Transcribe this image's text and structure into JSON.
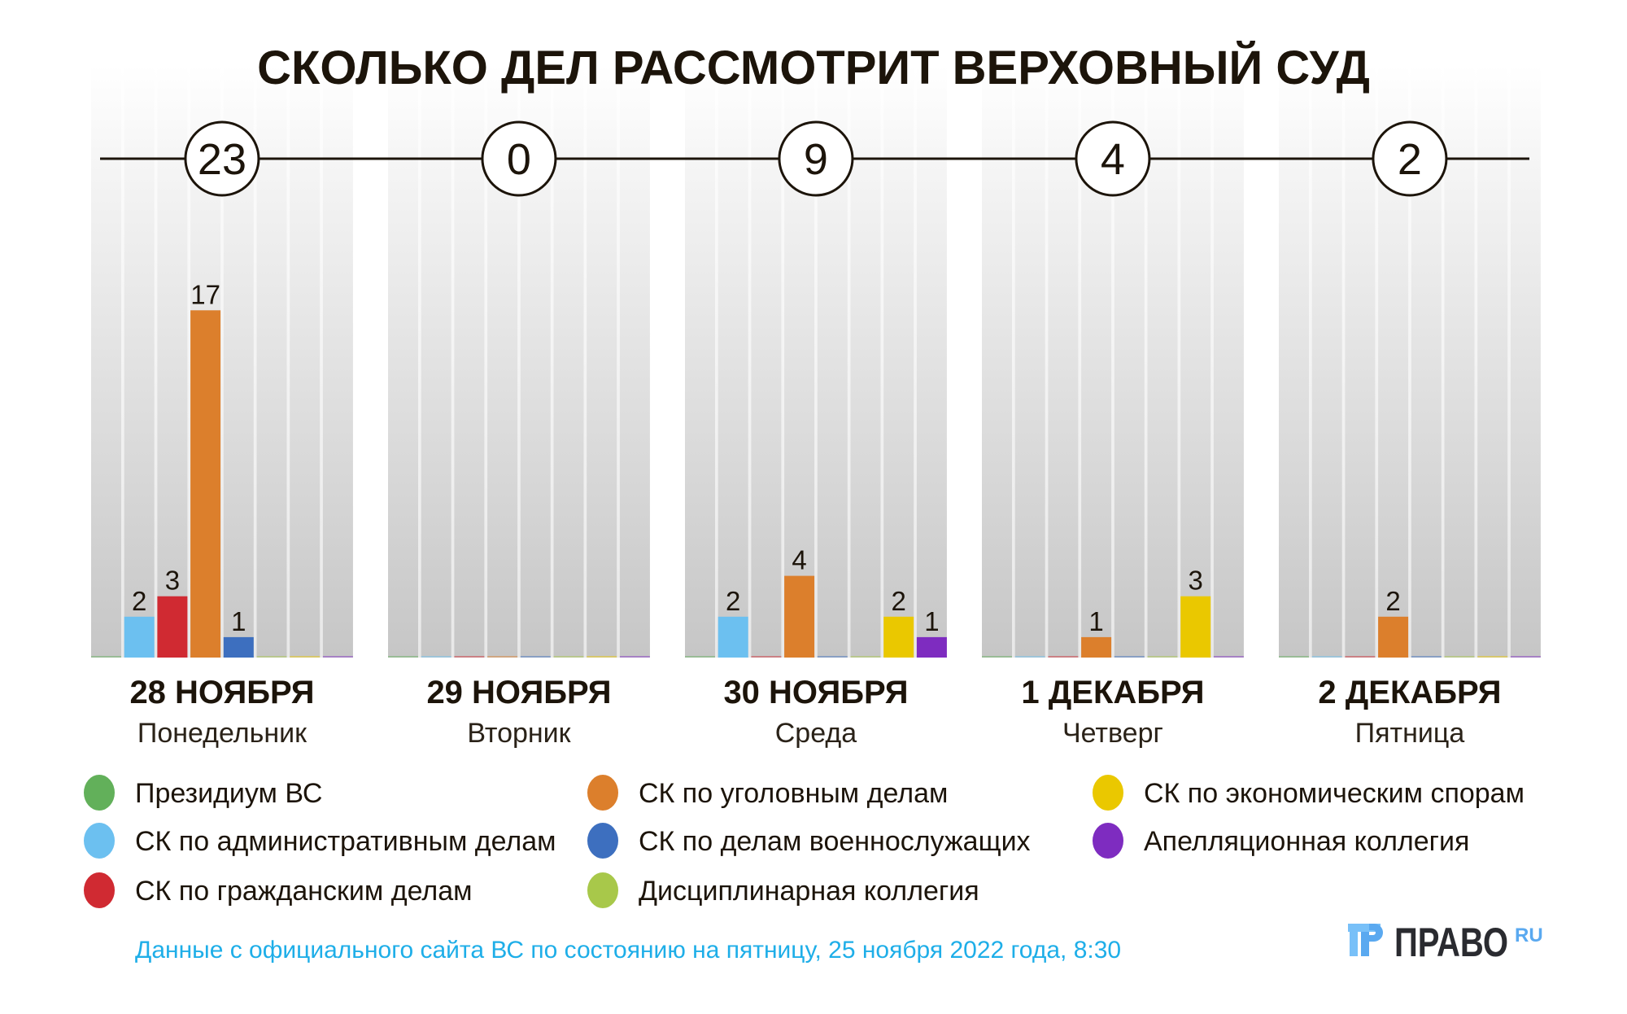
{
  "chart_data": {
    "type": "bar",
    "title": "СКОЛЬКО ДЕЛ РАССМОТРИТ ВЕРХОВНЫЙ СУД",
    "xlabel": "",
    "ylabel": "",
    "ylim": [
      0,
      20
    ],
    "grid": false,
    "legend_position": "bottom",
    "categories": [
      {
        "date": "28 НОЯБРЯ",
        "weekday": "Понедельник",
        "total": "23"
      },
      {
        "date": "29 НОЯБРЯ",
        "weekday": "Вторник",
        "total": "0"
      },
      {
        "date": "30 НОЯБРЯ",
        "weekday": "Среда",
        "total": "9"
      },
      {
        "date": "1 ДЕКАБРЯ",
        "weekday": "Четверг",
        "total": "4"
      },
      {
        "date": "2 ДЕКАБРЯ",
        "weekday": "Пятница",
        "total": "2"
      }
    ],
    "series": [
      {
        "name": "Президиум ВС",
        "color": "#62b05a",
        "values": [
          0,
          0,
          0,
          0,
          0
        ]
      },
      {
        "name": "СК по административным делам",
        "color": "#6cc0f0",
        "values": [
          2,
          0,
          2,
          0,
          0
        ]
      },
      {
        "name": "СК по гражданским делам",
        "color": "#d02a32",
        "values": [
          3,
          0,
          0,
          0,
          0
        ]
      },
      {
        "name": "СК по уголовным делам",
        "color": "#dc7f2c",
        "values": [
          17,
          0,
          4,
          1,
          2
        ]
      },
      {
        "name": "СК по делам военнослужащих",
        "color": "#3d6fbf",
        "values": [
          1,
          0,
          0,
          0,
          0
        ]
      },
      {
        "name": "Дисциплинарная коллегия",
        "color": "#a8c84a",
        "values": [
          0,
          0,
          0,
          0,
          0
        ]
      },
      {
        "name": "СК по экономическим спорам",
        "color": "#eac800",
        "values": [
          0,
          0,
          2,
          3,
          0
        ]
      },
      {
        "name": "Апелляционная коллегия",
        "color": "#7e2cc0",
        "values": [
          0,
          0,
          1,
          0,
          0
        ]
      }
    ],
    "legend_order": [
      0,
      3,
      6,
      1,
      4,
      7,
      2,
      5
    ]
  },
  "footer": {
    "source": "Данные с официального сайта ВС по состоянию на пятницу, 25 ноября 2022 года, 8:30",
    "logo_text": "ПРАВО",
    "logo_suffix": "RU",
    "logo_icon": "pravo-logo-icon",
    "logo_icon_color": "#5aa9f0"
  }
}
